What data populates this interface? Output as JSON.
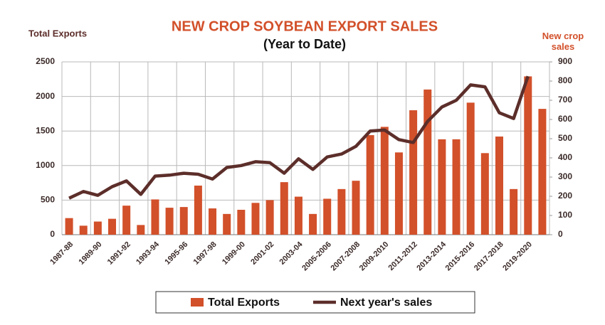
{
  "chart_data": {
    "type": "bar_line",
    "title": "NEW CROP SOYBEAN EXPORT SALES",
    "subtitle": "(Year to Date)",
    "ylabel": "Total Exports",
    "y2label": "New crop sales",
    "categories": [
      "1987-88",
      null,
      "1989-90",
      null,
      "1991-92",
      null,
      "1993-94",
      null,
      "1995-96",
      null,
      "1997-98",
      null,
      "1999-00",
      null,
      "2001-02",
      null,
      "2003-04",
      null,
      "2005-2006",
      null,
      "2007-2008",
      null,
      "2009-2010",
      null,
      "2011-2012",
      null,
      "2013-2014",
      null,
      "2015-2016",
      null,
      "2017-2018",
      null,
      "2019-2020",
      null
    ],
    "series": [
      {
        "name": "Total Exports",
        "color": "#d2502a",
        "values": [
          240,
          130,
          190,
          230,
          420,
          140,
          510,
          390,
          400,
          710,
          380,
          300,
          360,
          460,
          500,
          760,
          550,
          300,
          520,
          660,
          780,
          1440,
          1560,
          1190,
          1800,
          2100,
          1380,
          1380,
          1910,
          1180,
          1420,
          660,
          2290,
          1820
        ]
      },
      {
        "name": "Next year's sales",
        "color": "#5c2e2a",
        "axis": "y2",
        "values": [
          190,
          225,
          205,
          250,
          280,
          210,
          305,
          310,
          320,
          315,
          290,
          350,
          360,
          380,
          375,
          320,
          395,
          340,
          405,
          420,
          460,
          540,
          545,
          495,
          480,
          590,
          665,
          700,
          780,
          770,
          635,
          605,
          825,
          null
        ]
      }
    ],
    "ylim": [
      0,
      2500
    ],
    "yticks": [
      0,
      500,
      1000,
      1500,
      2000,
      2500
    ],
    "y2lim": [
      0,
      900
    ],
    "y2ticks": [
      0,
      100,
      200,
      300,
      400,
      500,
      600,
      700,
      800,
      900
    ],
    "grid": true,
    "legend": "bottom"
  }
}
